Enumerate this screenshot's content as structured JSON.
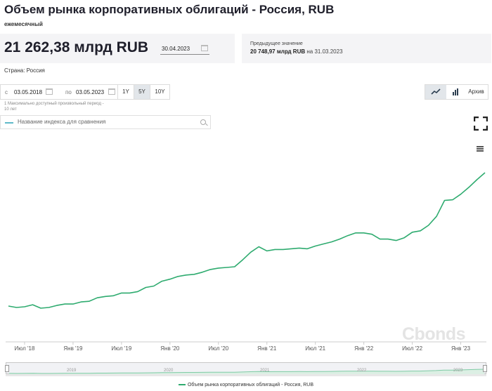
{
  "header": {
    "title": "Объем рынка корпоративных облигаций - Россия, RUB",
    "frequency": "ежемесячный"
  },
  "summary": {
    "value": "21 262,38 млрд RUB",
    "date": "30.04.2023",
    "previous_label": "Предыдущее значение",
    "previous_value": "20 748,97 млрд RUB",
    "previous_on": "на",
    "previous_date": "31.03.2023"
  },
  "country": "Страна: Россия",
  "range": {
    "from_label": "с",
    "from_date": "03.05.2018",
    "to_label": "по",
    "to_date": "03.05.2023",
    "periods": [
      "1Y",
      "5Y",
      "10Y"
    ],
    "active_period": "5Y",
    "note_line1": "1 Максимально доступный произвольный период -",
    "note_line2": "10 лет"
  },
  "compare": {
    "placeholder": "Название индекса для сравнения"
  },
  "toolbar": {
    "archive_label": "Архив"
  },
  "watermark": "Cbonds",
  "colors": {
    "series": "#2eab6f",
    "navigator": "#7fcba5",
    "active_button": "#e2e6ea"
  },
  "chart_data": {
    "type": "line",
    "title": "",
    "xlabel": "",
    "ylabel": "",
    "grid": false,
    "legend_placement": "bottom",
    "x_tick_labels": [
      "Июл '18",
      "Янв '19",
      "Июл '19",
      "Янв '20",
      "Июл '20",
      "Янв '21",
      "Июл '21",
      "Янв '22",
      "Июл '22",
      "Янв '23"
    ],
    "navigator_labels": [
      "2019",
      "2020",
      "2021",
      "2022",
      "2023"
    ],
    "series": [
      {
        "name": "Объем рынка корпоративных облигаций - Россия, RUB",
        "x": [
          "2018-05",
          "2018-06",
          "2018-07",
          "2018-08",
          "2018-09",
          "2018-10",
          "2018-11",
          "2018-12",
          "2019-01",
          "2019-02",
          "2019-03",
          "2019-04",
          "2019-05",
          "2019-06",
          "2019-07",
          "2019-08",
          "2019-09",
          "2019-10",
          "2019-11",
          "2019-12",
          "2020-01",
          "2020-02",
          "2020-03",
          "2020-04",
          "2020-05",
          "2020-06",
          "2020-07",
          "2020-08",
          "2020-09",
          "2020-10",
          "2020-11",
          "2020-12",
          "2021-01",
          "2021-02",
          "2021-03",
          "2021-04",
          "2021-05",
          "2021-06",
          "2021-07",
          "2021-08",
          "2021-09",
          "2021-10",
          "2021-11",
          "2021-12",
          "2022-01",
          "2022-02",
          "2022-03",
          "2022-04",
          "2022-05",
          "2022-06",
          "2022-07",
          "2022-08",
          "2022-09",
          "2022-10",
          "2022-11",
          "2022-12",
          "2023-01",
          "2023-02",
          "2023-03",
          "2023-04"
        ],
        "y": [
          11.6,
          11.5,
          11.55,
          11.7,
          11.45,
          11.5,
          11.65,
          11.75,
          11.75,
          11.9,
          11.95,
          12.2,
          12.3,
          12.35,
          12.55,
          12.55,
          12.65,
          12.95,
          13.05,
          13.4,
          13.55,
          13.75,
          13.85,
          13.9,
          14.05,
          14.25,
          14.35,
          14.4,
          14.45,
          14.95,
          15.5,
          15.9,
          15.6,
          15.7,
          15.7,
          15.75,
          15.8,
          15.75,
          15.95,
          16.1,
          16.25,
          16.45,
          16.7,
          16.9,
          16.9,
          16.8,
          16.45,
          16.45,
          16.35,
          16.55,
          16.95,
          17.05,
          17.45,
          18.1,
          19.25,
          19.3,
          19.7,
          20.2,
          20.75,
          21.26
        ]
      }
    ]
  }
}
